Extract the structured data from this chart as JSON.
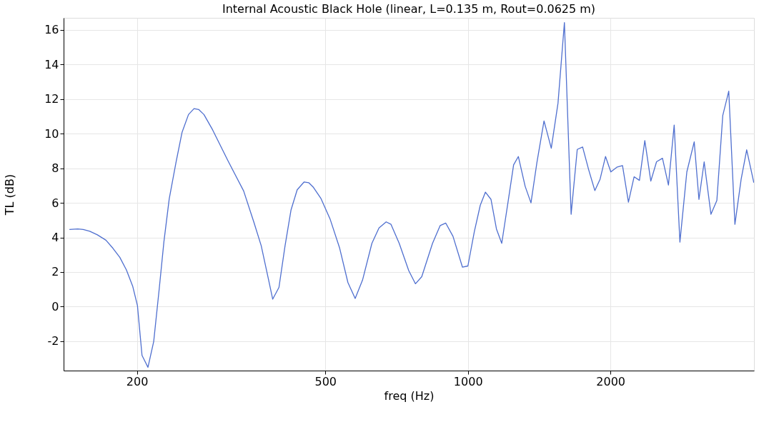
{
  "chart_data": {
    "type": "line",
    "title": "Internal Acoustic Black Hole (linear, L=0.135 m, Rout=0.0625 m)",
    "xlabel": "freq (Hz)",
    "ylabel": "TL (dB)",
    "x": [
      144,
      150,
      154,
      159,
      165,
      172,
      178,
      184,
      190,
      196,
      200.5,
      205,
      211,
      217,
      223,
      228,
      234,
      242,
      249,
      257,
      264,
      270,
      277,
      289,
      311,
      336,
      353,
      366,
      379,
      387,
      399,
      411,
      423,
      436,
      451,
      461,
      472,
      489,
      512,
      536,
      558,
      578,
      599,
      627,
      649,
      672,
      688,
      716,
      750,
      775,
      799,
      842,
      874,
      898,
      930,
      974,
      1000,
      1032,
      1062,
      1089,
      1119,
      1149,
      1179,
      1217,
      1249,
      1278,
      1321,
      1359,
      1399,
      1448,
      1500,
      1550,
      1599,
      1652,
      1702,
      1747,
      1799,
      1854,
      1902,
      1953,
      2004,
      2063,
      2121,
      2183,
      2244,
      2303,
      2364,
      2434,
      2503,
      2576,
      2652,
      2727,
      2804,
      2900,
      3006,
      3076,
      3155,
      3261,
      3356,
      3454,
      3556,
      3664,
      3777,
      3880,
      4017
    ],
    "series": [
      {
        "color": "#4f6fcf",
        "values": [
          4.46,
          4.49,
          4.46,
          4.36,
          4.15,
          3.84,
          3.37,
          2.85,
          2.12,
          1.16,
          0.05,
          -2.82,
          -3.51,
          -2.01,
          1.09,
          3.74,
          6.24,
          8.38,
          10.07,
          11.11,
          11.45,
          11.4,
          11.11,
          10.22,
          8.46,
          6.69,
          4.9,
          3.52,
          1.6,
          0.43,
          1.11,
          3.52,
          5.58,
          6.76,
          7.21,
          7.17,
          6.89,
          6.27,
          5.04,
          3.38,
          1.39,
          0.47,
          1.53,
          3.66,
          4.55,
          4.9,
          4.76,
          3.66,
          2.08,
          1.32,
          1.73,
          3.66,
          4.69,
          4.83,
          4.07,
          2.28,
          2.35,
          4.35,
          5.86,
          6.62,
          6.2,
          4.49,
          3.66,
          6.14,
          8.2,
          8.68,
          6.96,
          6.0,
          8.34,
          10.74,
          9.16,
          11.77,
          16.43,
          5.34,
          9.09,
          9.23,
          7.92,
          6.71,
          7.37,
          8.68,
          7.79,
          8.06,
          8.16,
          6.04,
          7.51,
          7.3,
          9.6,
          7.26,
          8.38,
          8.58,
          7.03,
          10.5,
          3.73,
          7.79,
          9.53,
          6.2,
          8.37,
          5.34,
          6.14,
          11.06,
          12.46,
          4.76,
          7.37,
          9.07,
          7.17
        ]
      }
    ],
    "log": "x",
    "xlim": [
      140,
      4020
    ],
    "xticks": [
      200,
      500,
      1000,
      2000
    ],
    "ylim": [
      -3.7,
      16.7
    ],
    "yticks": [
      -2,
      0,
      2,
      4,
      6,
      8,
      10,
      12,
      14,
      16
    ],
    "grid": true
  }
}
